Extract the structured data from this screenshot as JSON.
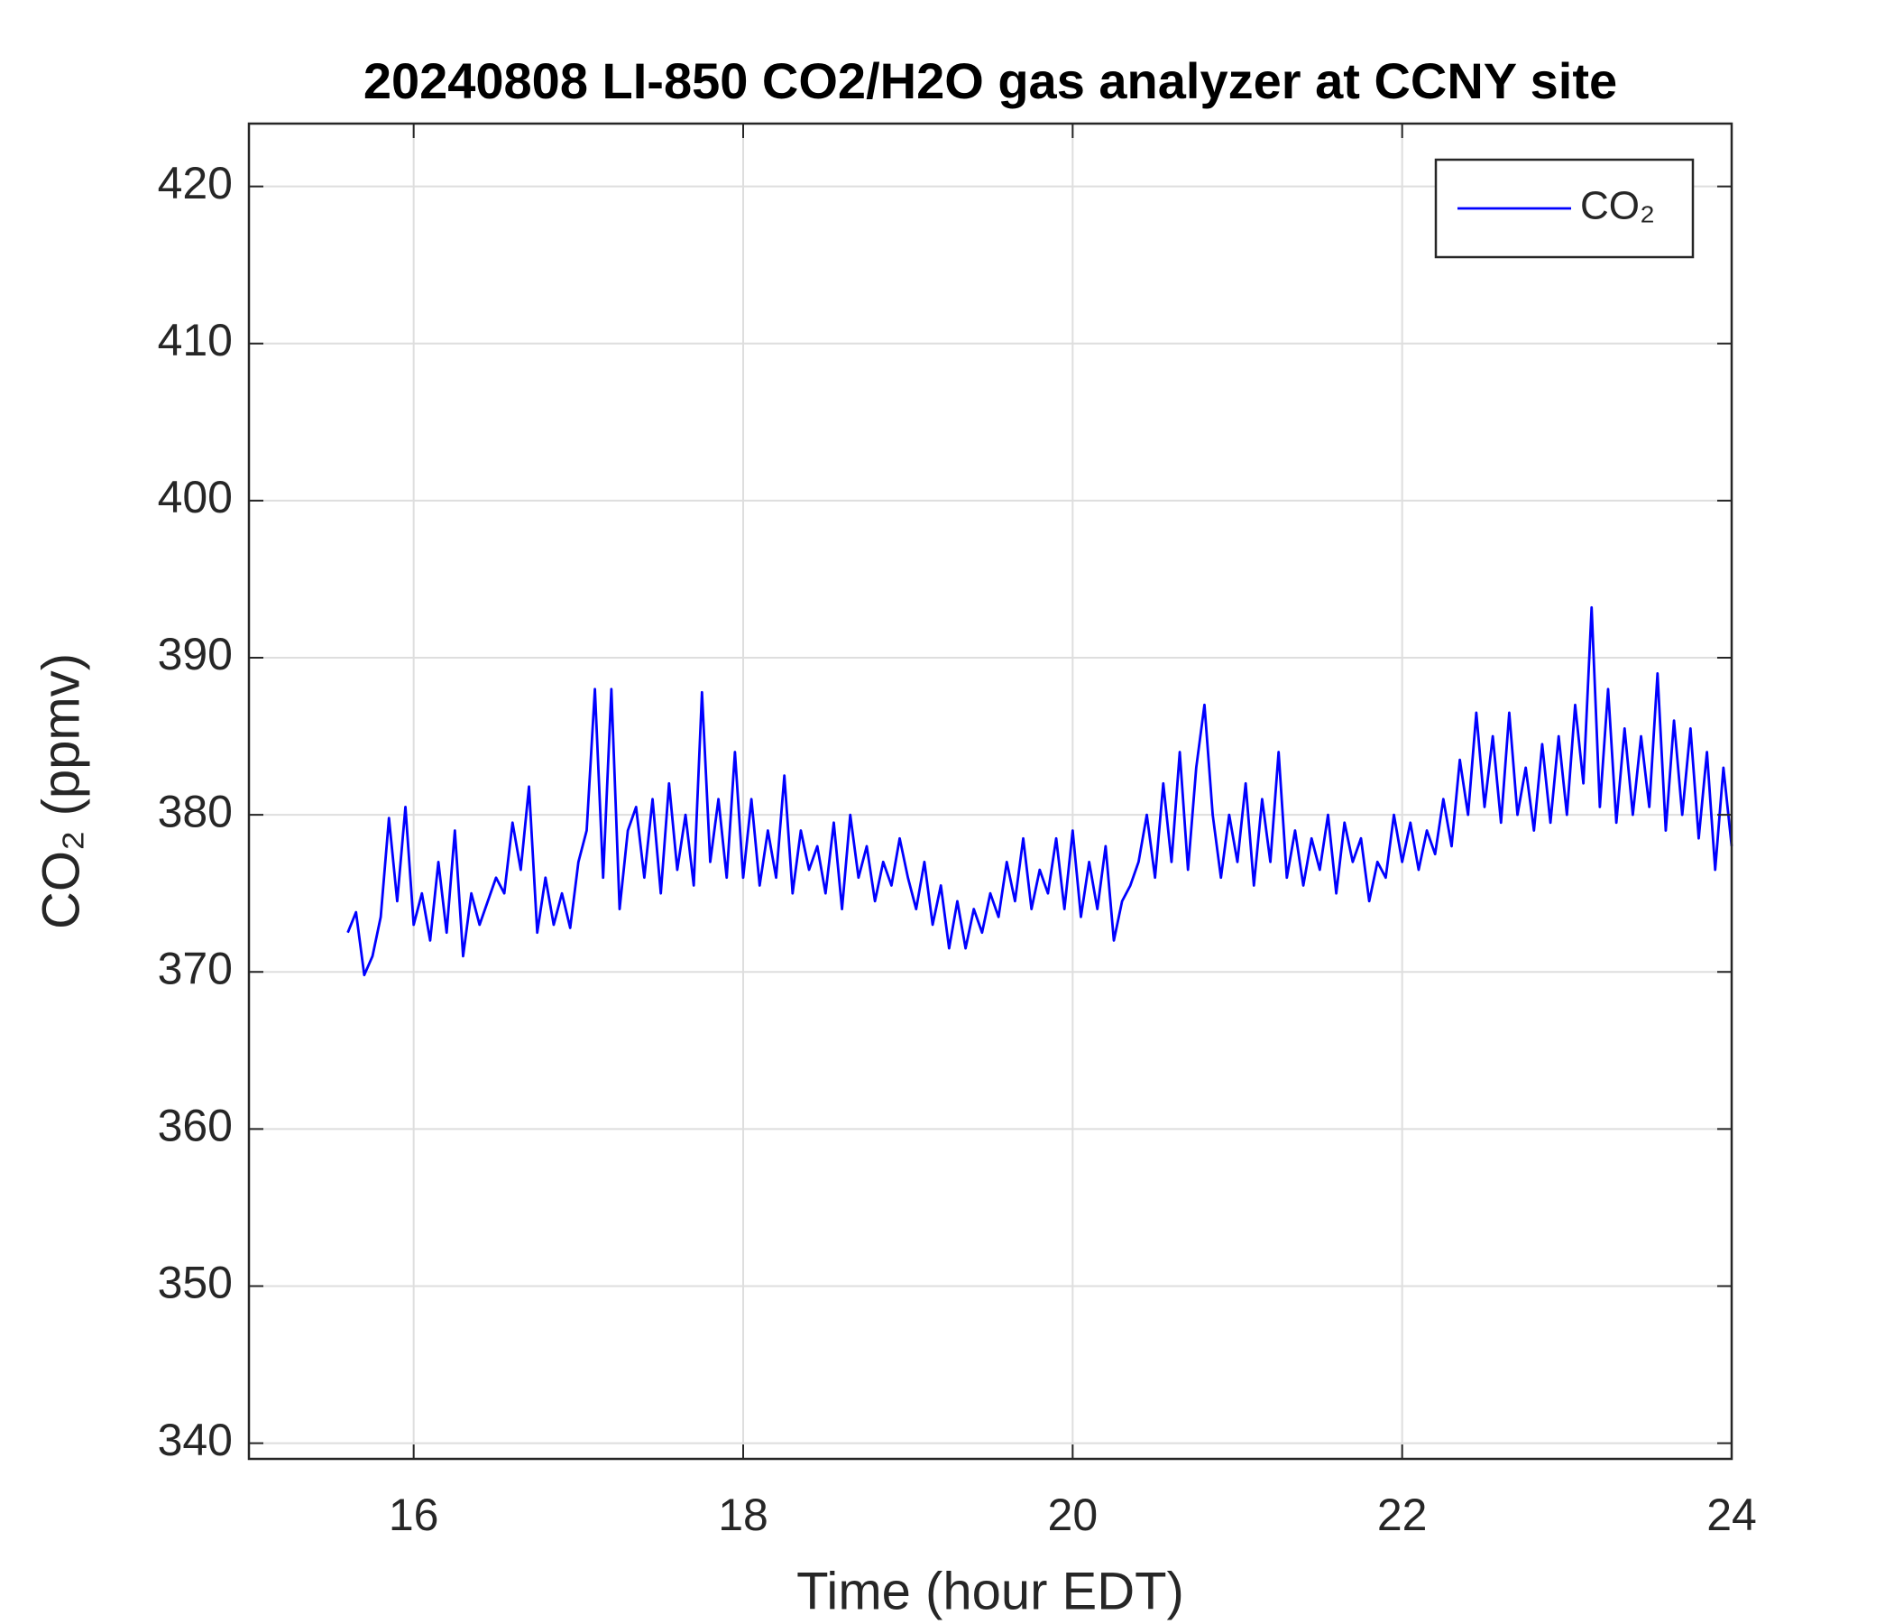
{
  "chart_data": {
    "type": "line",
    "title": "20240808 LI-850 CO2/H2O gas analyzer at CCNY site",
    "xlabel": "Time (hour EDT)",
    "ylabel": "CO₂ (ppmv)",
    "xlim": [
      15,
      24
    ],
    "xticks": [
      16,
      18,
      20,
      22,
      24
    ],
    "ylim": [
      339,
      424
    ],
    "yticks": [
      340,
      350,
      360,
      370,
      380,
      390,
      400,
      410,
      420
    ],
    "grid": true,
    "legend": "upper right",
    "x": [
      15.6,
      15.65,
      15.7,
      15.75,
      15.8,
      15.85,
      15.9,
      15.95,
      16,
      16.05,
      16.1,
      16.15,
      16.2,
      16.25,
      16.3,
      16.35,
      16.4,
      16.45,
      16.5,
      16.55,
      16.6,
      16.65,
      16.7,
      16.75,
      16.8,
      16.85,
      16.9,
      16.95,
      17,
      17.05,
      17.1,
      17.15,
      17.2,
      17.25,
      17.3,
      17.35,
      17.4,
      17.45,
      17.5,
      17.55,
      17.6,
      17.65,
      17.7,
      17.75,
      17.8,
      17.85,
      17.9,
      17.95,
      18,
      18.05,
      18.1,
      18.15,
      18.2,
      18.25,
      18.3,
      18.35,
      18.4,
      18.45,
      18.5,
      18.55,
      18.6,
      18.65,
      18.7,
      18.75,
      18.8,
      18.85,
      18.9,
      18.95,
      19,
      19.05,
      19.1,
      19.15,
      19.2,
      19.25,
      19.3,
      19.35,
      19.4,
      19.45,
      19.5,
      19.55,
      19.6,
      19.65,
      19.7,
      19.75,
      19.8,
      19.85,
      19.9,
      19.95,
      20,
      20.05,
      20.1,
      20.15,
      20.2,
      20.25,
      20.3,
      20.35,
      20.4,
      20.45,
      20.5,
      20.55,
      20.6,
      20.65,
      20.7,
      20.75,
      20.8,
      20.85,
      20.9,
      20.95,
      21,
      21.05,
      21.1,
      21.15,
      21.2,
      21.25,
      21.3,
      21.35,
      21.4,
      21.45,
      21.5,
      21.55,
      21.6,
      21.65,
      21.7,
      21.75,
      21.8,
      21.85,
      21.9,
      21.95,
      22,
      22.05,
      22.1,
      22.15,
      22.2,
      22.25,
      22.3,
      22.35,
      22.4,
      22.45,
      22.5,
      22.55,
      22.6,
      22.65,
      22.7,
      22.75,
      22.8,
      22.85,
      22.9,
      22.95,
      23,
      23.05,
      23.1,
      23.15,
      23.2,
      23.25,
      23.3,
      23.35,
      23.4,
      23.45,
      23.5,
      23.55,
      23.6,
      23.65,
      23.7,
      23.75,
      23.8,
      23.85,
      23.9,
      23.95,
      24
    ],
    "series": [
      {
        "name": "CO₂",
        "color": "#0000ff",
        "values": [
          372.5,
          373.8,
          369.8,
          371,
          373.5,
          379.8,
          374.5,
          380.5,
          373,
          375,
          372,
          377,
          372.5,
          379,
          371,
          375,
          373,
          374.5,
          376,
          375,
          379.5,
          376.5,
          381.8,
          372.5,
          376,
          373,
          375,
          372.8,
          377,
          379,
          388,
          376,
          388,
          374,
          379,
          380.5,
          376,
          381,
          375,
          382,
          376.5,
          380,
          375.5,
          387.8,
          377,
          381,
          376,
          384,
          376,
          381,
          375.5,
          379,
          376,
          382.5,
          375,
          379,
          376.5,
          378,
          375,
          379.5,
          374,
          380,
          376,
          378,
          374.5,
          377,
          375.5,
          378.5,
          376,
          374,
          377,
          373,
          375.5,
          371.5,
          374.5,
          371.5,
          374,
          372.5,
          375,
          373.5,
          377,
          374.5,
          378.5,
          374,
          376.5,
          375,
          378.5,
          374,
          379,
          373.5,
          377,
          374,
          378,
          372,
          374.5,
          375.5,
          377,
          380,
          376,
          382,
          377,
          384,
          376.5,
          383,
          387,
          380,
          376,
          380,
          377,
          382,
          375.5,
          381,
          377,
          384,
          376,
          379,
          375.5,
          378.5,
          376.5,
          380,
          375,
          379.5,
          377,
          378.5,
          374.5,
          377,
          376,
          380,
          377,
          379.5,
          376.5,
          379,
          377.5,
          381,
          378,
          383.5,
          380,
          386.5,
          380.5,
          385,
          379.5,
          386.5,
          380,
          383,
          379,
          384.5,
          379.5,
          385,
          380,
          387,
          382,
          393.2,
          380.5,
          388,
          379.5,
          385.5,
          380,
          385,
          380.5,
          389,
          379,
          386,
          380,
          385.5,
          378.5,
          384,
          376.5,
          383,
          378
        ]
      }
    ]
  }
}
